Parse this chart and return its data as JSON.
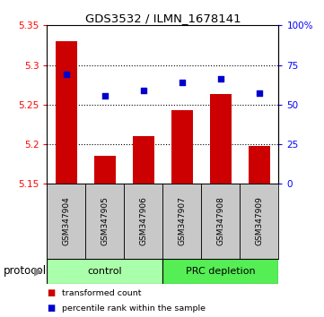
{
  "title": "GDS3532 / ILMN_1678141",
  "samples": [
    "GSM347904",
    "GSM347905",
    "GSM347906",
    "GSM347907",
    "GSM347908",
    "GSM347909"
  ],
  "bar_values": [
    5.33,
    5.185,
    5.21,
    5.243,
    5.263,
    5.198
  ],
  "scatter_values": [
    5.288,
    5.261,
    5.268,
    5.278,
    5.282,
    5.265
  ],
  "bar_color": "#cc0000",
  "scatter_color": "#0000cc",
  "ylim_left": [
    5.15,
    5.35
  ],
  "ylim_right": [
    0,
    100
  ],
  "yticks_left": [
    5.15,
    5.2,
    5.25,
    5.3,
    5.35
  ],
  "ytick_labels_left": [
    "5.15",
    "5.2",
    "5.25",
    "5.3",
    "5.35"
  ],
  "yticks_right": [
    0,
    25,
    50,
    75,
    100
  ],
  "ytick_labels_right": [
    "0",
    "25",
    "50",
    "75",
    "100%"
  ],
  "groups": [
    {
      "label": "control",
      "color": "#99ff99"
    },
    {
      "label": "PRC depletion",
      "color": "#33ee33"
    }
  ],
  "protocol_label": "protocol",
  "legend_bar_label": "transformed count",
  "legend_scatter_label": "percentile rank within the sample",
  "background_plot": "#ffffff",
  "background_samples": "#c8c8c8",
  "background_control": "#aaffaa",
  "background_prc": "#55ee55",
  "gridline_ticks": [
    5.2,
    5.25,
    5.3
  ]
}
